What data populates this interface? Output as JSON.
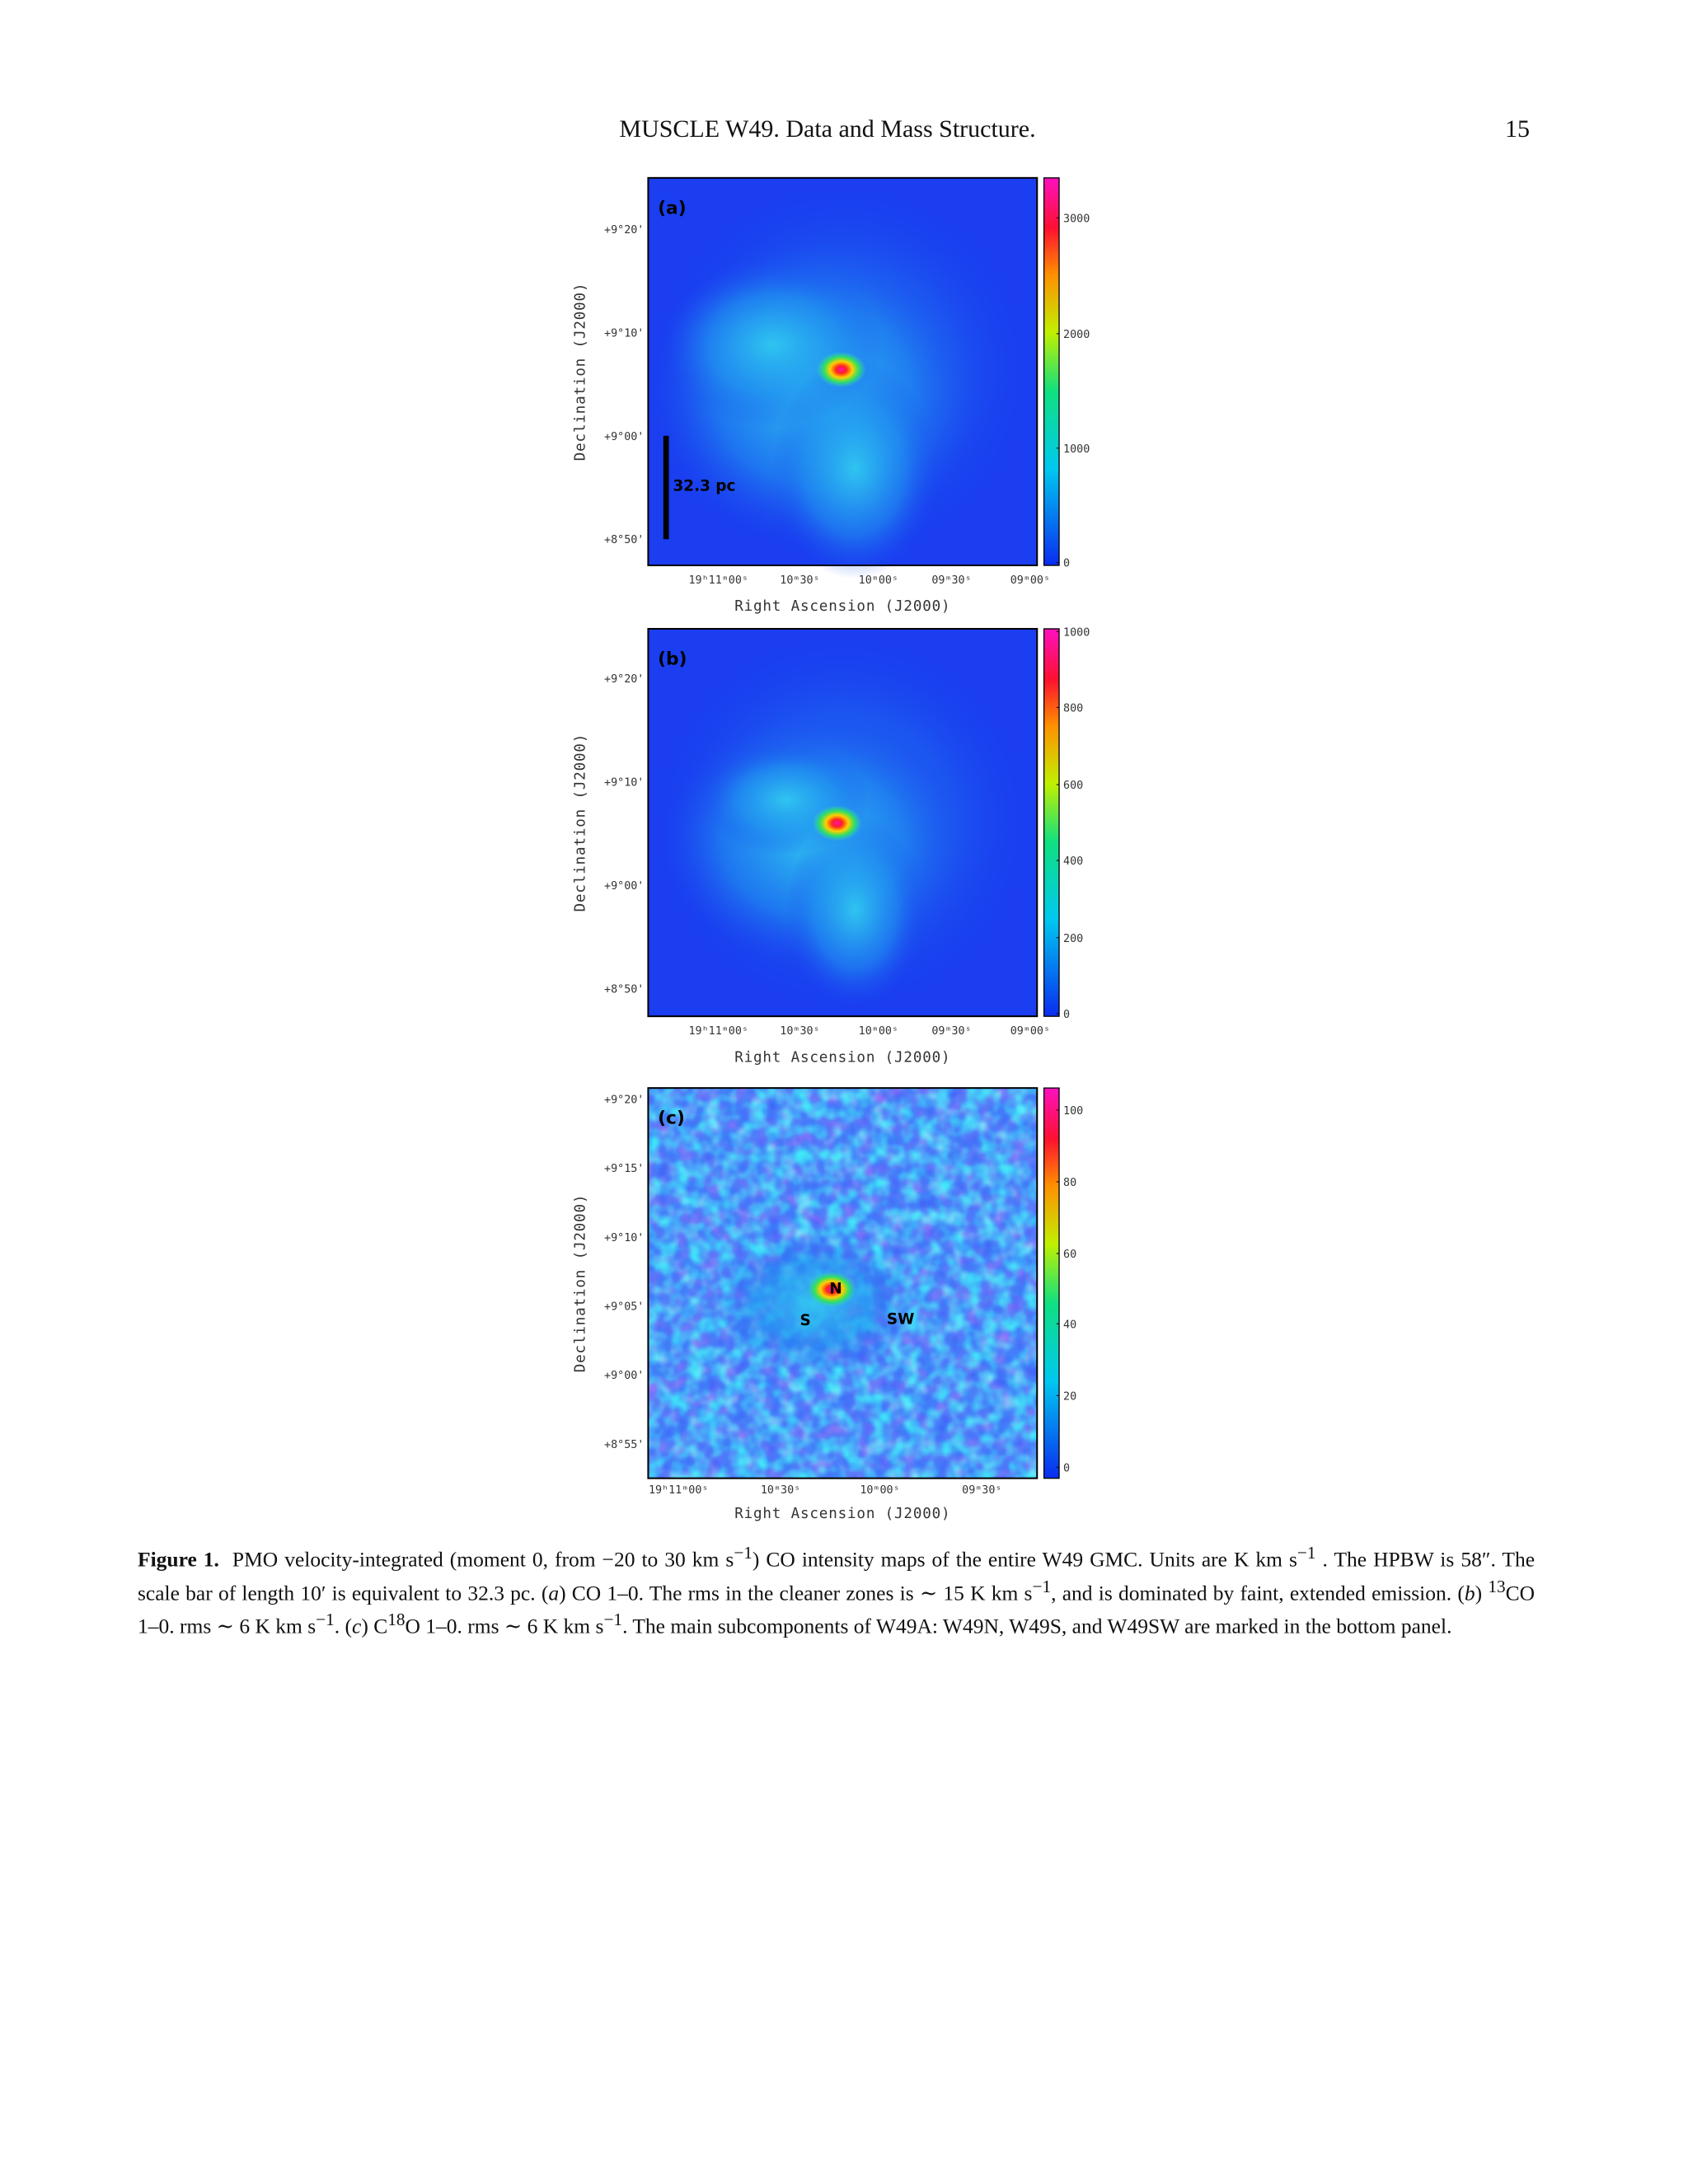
{
  "header": {
    "title": "MUSCLE W49. Data and Mass Structure.",
    "page": "15"
  },
  "figure": {
    "panels": [
      {
        "label": "(a)",
        "ylabel": "Declination (J2000)",
        "xlabel": "Right Ascension (J2000)",
        "yticks": [
          "+9°20'",
          "+9°10'",
          "+9°00'",
          "+8°50'"
        ],
        "xticks": [
          "19ʰ11ᵐ00ˢ",
          "10ᵐ30ˢ",
          "10ᵐ00ˢ",
          "09ᵐ30ˢ",
          "09ᵐ00ˢ"
        ],
        "colorbar": [
          "3000",
          "2000",
          "1000",
          "0"
        ],
        "scale_bar": "32.3 pc"
      },
      {
        "label": "(b)",
        "ylabel": "Declination (J2000)",
        "xlabel": "Right Ascension (J2000)",
        "yticks": [
          "+9°20'",
          "+9°10'",
          "+9°00'",
          "+8°50'"
        ],
        "xticks": [
          "19ʰ11ᵐ00ˢ",
          "10ᵐ30ˢ",
          "10ᵐ00ˢ",
          "09ᵐ30ˢ",
          "09ᵐ00ˢ"
        ],
        "colorbar": [
          "1000",
          "800",
          "600",
          "400",
          "200",
          "0"
        ]
      },
      {
        "label": "(c)",
        "ylabel": "Declination (J2000)",
        "xlabel": "Right Ascension (J2000)",
        "yticks": [
          "+9°20'",
          "+9°15'",
          "+9°10'",
          "+9°05'",
          "+9°00'",
          "+8°55'"
        ],
        "xticks": [
          "19ʰ11ᵐ00ˢ",
          "10ᵐ30ˢ",
          "10ᵐ00ˢ",
          "09ᵐ30ˢ"
        ],
        "colorbar": [
          "100",
          "80",
          "60",
          "40",
          "20",
          "0"
        ],
        "annotations": [
          "N",
          "S",
          "SW"
        ]
      }
    ]
  },
  "caption": {
    "label": "Figure 1.",
    "parts": [
      "PMO velocity-integrated (moment 0, from −20 to 30 km s",
      "−1",
      ") CO intensity maps of the entire W49 GMC. Units are K km s",
      "−1",
      " . The HPBW is 58″. The scale bar of length 10′  is equivalent to 32.3 pc. (",
      "a",
      ") CO 1–0. The rms in the cleaner zones is ∼ 15 K km s",
      "−1",
      ", and is dominated by faint, extended emission. (",
      "b",
      ") ",
      "13",
      "CO 1–0.  rms ∼ 6 K km s",
      "−1",
      ".  (",
      "c",
      ") C",
      "18",
      "O 1–0.  rms ∼ 6 K km s",
      "−1",
      ".  The main subcomponents of W49A: W49N, W49S, and W49SW are marked in the bottom panel."
    ]
  }
}
